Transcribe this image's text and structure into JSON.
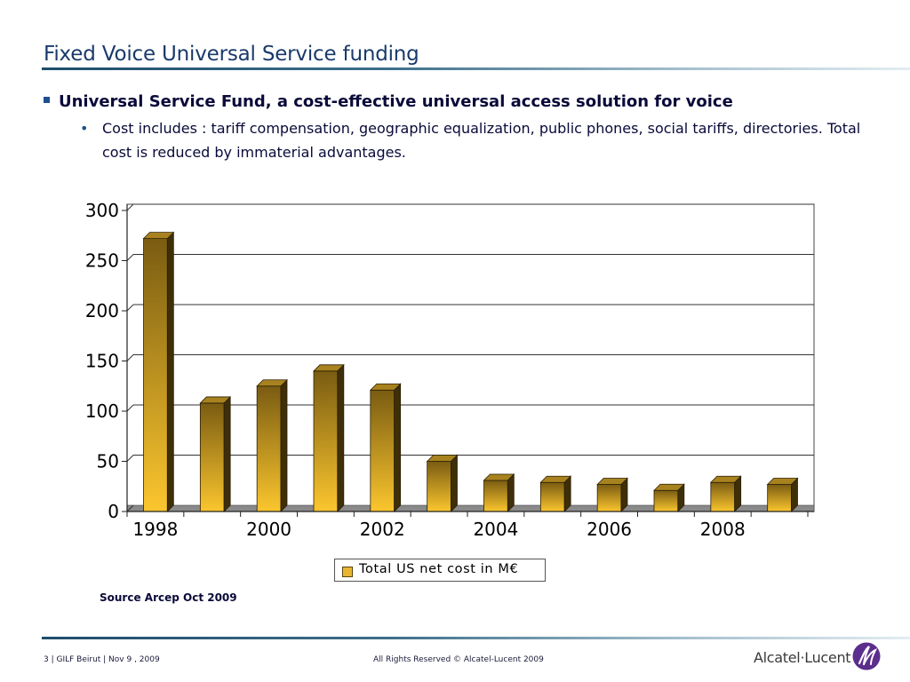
{
  "slide": {
    "title": "Fixed Voice Universal Service funding",
    "bullet_main": "Universal Service Fund, a cost-effective universal access solution for voice",
    "bullet_sub": "Cost includes : tariff compensation, geographic equalization, public phones, social tariffs, directories. Total cost is reduced by immaterial advantages.",
    "source": "Source Arcep Oct 2009"
  },
  "footer": {
    "left": "3 | GILF Beirut  | Nov 9 , 2009",
    "center": "All Rights Reserved © Alcatel-Lucent 2009",
    "logo": "Alcatel·Lucent"
  },
  "colors": {
    "bar_top": "#7a5c12",
    "bar_bottom": "#fbc62e",
    "title": "#1a3a6b",
    "accent_rule": "#1f4d6b"
  },
  "chart_data": {
    "type": "bar",
    "categories": [
      "1998",
      "1999",
      "2000",
      "2001",
      "2002",
      "2003",
      "2004",
      "2005",
      "2006",
      "2007",
      "2008",
      "2009"
    ],
    "tick_labels": [
      "1998",
      "2000",
      "2002",
      "2004",
      "2006",
      "2008"
    ],
    "series": [
      {
        "name": "Total US net cost in M€",
        "values": [
          272,
          108,
          125,
          140,
          121,
          50,
          31,
          29,
          27,
          21,
          29,
          27
        ]
      }
    ],
    "ylim": [
      0,
      300
    ],
    "yticks": [
      0,
      50,
      100,
      150,
      200,
      250,
      300
    ],
    "grid": true,
    "legend_position": "bottom",
    "style": "3d"
  }
}
